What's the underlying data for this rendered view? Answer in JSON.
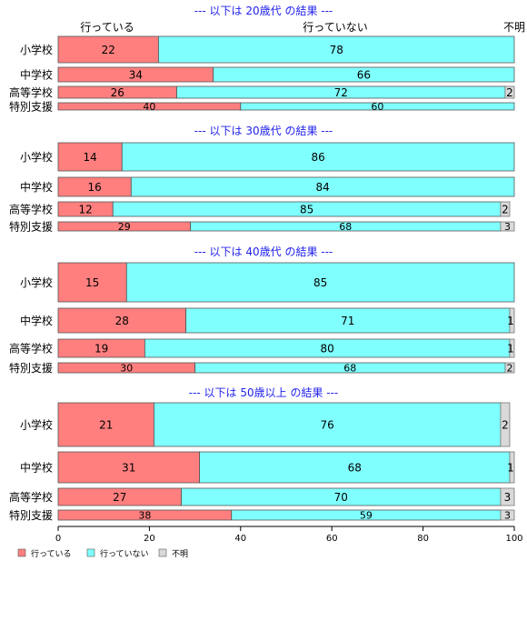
{
  "chart_data": {
    "type": "bar",
    "stacked": true,
    "orientation": "horizontal",
    "xlim": [
      0,
      100
    ],
    "x_ticks": [
      "0",
      "20",
      "40",
      "60",
      "80",
      "100"
    ],
    "top_labels": [
      "行っている",
      "行っていない",
      "不明"
    ],
    "legend_placement": "bottom-left",
    "series_legend": [
      {
        "name": "行っている",
        "color": "#ff7f7f"
      },
      {
        "name": "行っていない",
        "color": "#80ffff"
      },
      {
        "name": "不明",
        "color": "#d9d9d9"
      }
    ],
    "panels": [
      {
        "title": "--- 以下は 20歳代 の結果 ---",
        "categories": [
          "小学校",
          "中学校",
          "高等学校",
          "特別支援"
        ],
        "values": [
          [
            22,
            78,
            0
          ],
          [
            34,
            66,
            0
          ],
          [
            26,
            72,
            2
          ],
          [
            40,
            60,
            0
          ]
        ],
        "labels": [
          [
            "22",
            "78",
            ""
          ],
          [
            "34",
            "66",
            ""
          ],
          [
            "26",
            "72",
            "2"
          ],
          [
            "40",
            "60",
            ""
          ]
        ]
      },
      {
        "title": "--- 以下は 30歳代 の結果 ---",
        "categories": [
          "小学校",
          "中学校",
          "高等学校",
          "特別支援"
        ],
        "values": [
          [
            14,
            86,
            0
          ],
          [
            16,
            84,
            0
          ],
          [
            12,
            85,
            2
          ],
          [
            29,
            68,
            3
          ]
        ],
        "labels": [
          [
            "14",
            "86",
            ""
          ],
          [
            "16",
            "84",
            ""
          ],
          [
            "12",
            "85",
            "2"
          ],
          [
            "29",
            "68",
            "3"
          ]
        ]
      },
      {
        "title": "--- 以下は 40歳代 の結果 ---",
        "categories": [
          "小学校",
          "中学校",
          "高等学校",
          "特別支援"
        ],
        "values": [
          [
            15,
            85,
            0
          ],
          [
            28,
            71,
            1
          ],
          [
            19,
            80,
            1
          ],
          [
            30,
            68,
            2
          ]
        ],
        "labels": [
          [
            "15",
            "85",
            ""
          ],
          [
            "28",
            "71",
            "1"
          ],
          [
            "19",
            "80",
            "1"
          ],
          [
            "30",
            "68",
            "2"
          ]
        ]
      },
      {
        "title": "--- 以下は 50歳以上 の結果 ---",
        "categories": [
          "小学校",
          "中学校",
          "高等学校",
          "特別支援"
        ],
        "values": [
          [
            21,
            76,
            2
          ],
          [
            31,
            68,
            1
          ],
          [
            27,
            70,
            3
          ],
          [
            38,
            59,
            3
          ]
        ],
        "labels": [
          [
            "21",
            "76",
            "2"
          ],
          [
            "31",
            "68",
            "1"
          ],
          [
            "27",
            "70",
            "3"
          ],
          [
            "38",
            "59",
            "3"
          ]
        ]
      }
    ]
  }
}
